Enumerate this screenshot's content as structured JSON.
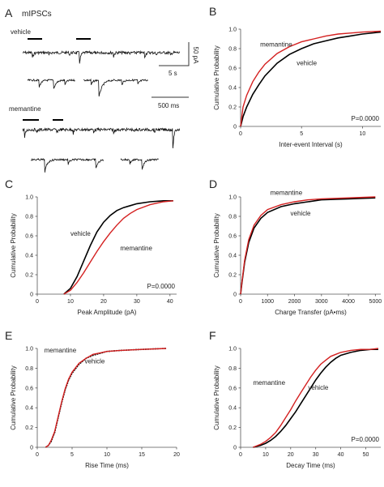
{
  "title": "mIPSCs",
  "colors": {
    "vehicle": "#000000",
    "memantine": "#d42020",
    "axis": "#555555"
  },
  "traces": {
    "vehicle_label": "vehicle",
    "memantine_label": "memantine",
    "scale_amplitude": "50 pA",
    "scale_long": "5 s",
    "scale_short": "500 ms"
  },
  "chart_data": [
    {
      "id": "B",
      "letter": "B",
      "type": "line",
      "xlabel": "Inter-event Interval (s)",
      "ylabel": "Cumulative Probability",
      "xlim": [
        0,
        11.5
      ],
      "ylim": [
        0,
        1.0
      ],
      "xticks": [
        0,
        5,
        10
      ],
      "yticks": [
        0,
        0.2,
        0.4,
        0.6,
        0.8,
        1.0
      ],
      "ytick_labels": [
        "0",
        "0.2",
        "0.4",
        "0.6",
        "0.8",
        "1.0"
      ],
      "pvalue": "P=0.0000",
      "annotations": [
        {
          "text": "memantine",
          "x": 1.6,
          "y": 0.82,
          "series": "memantine"
        },
        {
          "text": "vehicle",
          "x": 4.6,
          "y": 0.63,
          "series": "vehicle"
        }
      ],
      "series": [
        {
          "name": "vehicle",
          "x": [
            0,
            0.2,
            0.5,
            1,
            1.5,
            2,
            3,
            4,
            5,
            6,
            7,
            8,
            9,
            10,
            11.5
          ],
          "y": [
            0.0,
            0.1,
            0.2,
            0.33,
            0.43,
            0.52,
            0.65,
            0.74,
            0.8,
            0.85,
            0.88,
            0.91,
            0.93,
            0.95,
            0.97
          ]
        },
        {
          "name": "memantine",
          "x": [
            0,
            0.2,
            0.5,
            1,
            1.5,
            2,
            3,
            4,
            5,
            6,
            7,
            8,
            9,
            10,
            11.5
          ],
          "y": [
            0.0,
            0.2,
            0.32,
            0.46,
            0.56,
            0.64,
            0.75,
            0.82,
            0.87,
            0.9,
            0.93,
            0.95,
            0.96,
            0.97,
            0.98
          ]
        }
      ]
    },
    {
      "id": "C",
      "letter": "C",
      "type": "line",
      "xlabel": "Peak Amplitude (pA)",
      "ylabel": "Cumulative Probability",
      "xlim": [
        0,
        42
      ],
      "ylim": [
        0,
        1.0
      ],
      "xticks": [
        0,
        10,
        20,
        30,
        40
      ],
      "yticks": [
        0,
        0.2,
        0.4,
        0.6,
        0.8,
        1.0
      ],
      "ytick_labels": [
        "0",
        "0.2",
        "0.4",
        "0.6",
        "0.8",
        "1.0"
      ],
      "pvalue": "P=0.0000",
      "annotations": [
        {
          "text": "vehicle",
          "x": 10,
          "y": 0.6,
          "series": "vehicle"
        },
        {
          "text": "memantine",
          "x": 25,
          "y": 0.45,
          "series": "memantine"
        }
      ],
      "series": [
        {
          "name": "vehicle",
          "x": [
            8,
            10,
            12,
            14,
            16,
            18,
            20,
            22,
            24,
            26,
            28,
            30,
            34,
            38,
            41
          ],
          "y": [
            0.0,
            0.06,
            0.18,
            0.34,
            0.5,
            0.64,
            0.74,
            0.81,
            0.86,
            0.89,
            0.91,
            0.93,
            0.95,
            0.96,
            0.96
          ]
        },
        {
          "name": "memantine",
          "x": [
            8,
            10,
            12,
            14,
            16,
            18,
            20,
            22,
            24,
            26,
            28,
            30,
            34,
            38,
            41
          ],
          "y": [
            0.0,
            0.04,
            0.12,
            0.22,
            0.33,
            0.44,
            0.54,
            0.63,
            0.71,
            0.78,
            0.83,
            0.87,
            0.92,
            0.95,
            0.96
          ]
        }
      ]
    },
    {
      "id": "D",
      "letter": "D",
      "type": "line",
      "xlabel": "Charge Transfer (pA•ms)",
      "ylabel": "Cumulative Probability",
      "xlim": [
        0,
        5200
      ],
      "ylim": [
        0,
        1.0
      ],
      "xticks": [
        0,
        1000,
        2000,
        3000,
        4000,
        5000
      ],
      "yticks": [
        0,
        0.2,
        0.4,
        0.6,
        0.8,
        1.0
      ],
      "ytick_labels": [
        "0",
        "0.2",
        "0.4",
        "0.6",
        "0.8",
        "1.0"
      ],
      "pvalue": "",
      "annotations": [
        {
          "text": "memantine",
          "x": 1100,
          "y": 1.02,
          "series": "memantine"
        },
        {
          "text": "vehicle",
          "x": 1850,
          "y": 0.81,
          "series": "vehicle"
        }
      ],
      "series": [
        {
          "name": "vehicle",
          "x": [
            0,
            50,
            150,
            300,
            500,
            750,
            1000,
            1500,
            2000,
            2500,
            3000,
            4000,
            5000
          ],
          "y": [
            0.0,
            0.12,
            0.33,
            0.53,
            0.68,
            0.78,
            0.84,
            0.9,
            0.93,
            0.95,
            0.97,
            0.98,
            0.99
          ]
        },
        {
          "name": "memantine",
          "x": [
            0,
            50,
            150,
            300,
            500,
            750,
            1000,
            1500,
            2000,
            2500,
            3000,
            4000,
            5000
          ],
          "y": [
            0.0,
            0.13,
            0.35,
            0.56,
            0.71,
            0.81,
            0.87,
            0.92,
            0.95,
            0.97,
            0.98,
            0.99,
            1.0
          ]
        }
      ]
    },
    {
      "id": "E",
      "letter": "E",
      "type": "line",
      "xlabel": "Rise Time (ms)",
      "ylabel": "Cumulative Probability",
      "xlim": [
        0,
        20
      ],
      "ylim": [
        0,
        1.0
      ],
      "xticks": [
        0,
        5,
        10,
        15,
        20
      ],
      "yticks": [
        0,
        0.2,
        0.4,
        0.6,
        0.8,
        1.0
      ],
      "ytick_labels": [
        "0",
        "0.2",
        "0.4",
        "0.6",
        "0.8",
        "1.0"
      ],
      "pvalue": "",
      "annotations": [
        {
          "text": "memantine",
          "x": 1.0,
          "y": 0.96,
          "series": "memantine"
        },
        {
          "text": "vehicle",
          "x": 6.8,
          "y": 0.85,
          "series": "vehicle"
        }
      ],
      "series": [
        {
          "name": "vehicle",
          "x": [
            1.2,
            1.6,
            2,
            2.5,
            3,
            3.5,
            4,
            4.5,
            5,
            6,
            7,
            8,
            10,
            12,
            15,
            18.5
          ],
          "y": [
            0.0,
            0.02,
            0.06,
            0.15,
            0.3,
            0.45,
            0.58,
            0.68,
            0.75,
            0.84,
            0.9,
            0.93,
            0.97,
            0.98,
            0.99,
            1.0
          ]
        },
        {
          "name": "memantine",
          "x": [
            1.2,
            1.6,
            2,
            2.5,
            3,
            3.5,
            4,
            4.5,
            5,
            6,
            7,
            8,
            10,
            12,
            15,
            18.5
          ],
          "y": [
            0.0,
            0.02,
            0.07,
            0.16,
            0.31,
            0.46,
            0.59,
            0.69,
            0.76,
            0.85,
            0.9,
            0.94,
            0.97,
            0.98,
            0.99,
            1.0
          ]
        }
      ]
    },
    {
      "id": "F",
      "letter": "F",
      "type": "line",
      "xlabel": "Decay Time (ms)",
      "ylabel": "Cumulative Probability",
      "xlim": [
        0,
        56
      ],
      "ylim": [
        0,
        1.0
      ],
      "xticks": [
        0,
        10,
        20,
        30,
        40,
        50
      ],
      "yticks": [
        0,
        0.2,
        0.4,
        0.6,
        0.8,
        1.0
      ],
      "ytick_labels": [
        "0",
        "0.2",
        "0.4",
        "0.6",
        "0.8",
        "1.0"
      ],
      "pvalue": "P=0.0000",
      "annotations": [
        {
          "text": "memantine",
          "x": 5,
          "y": 0.63,
          "series": "memantine"
        },
        {
          "text": "vehicle",
          "x": 27,
          "y": 0.58,
          "series": "vehicle"
        }
      ],
      "series": [
        {
          "name": "vehicle",
          "x": [
            5,
            8,
            10,
            12,
            14,
            16,
            18,
            20,
            22,
            24,
            26,
            28,
            30,
            32,
            34,
            36,
            38,
            40,
            44,
            48,
            52,
            55
          ],
          "y": [
            0.0,
            0.02,
            0.04,
            0.07,
            0.11,
            0.16,
            0.22,
            0.29,
            0.36,
            0.44,
            0.52,
            0.6,
            0.68,
            0.75,
            0.81,
            0.86,
            0.9,
            0.93,
            0.96,
            0.98,
            0.99,
            0.99
          ]
        },
        {
          "name": "memantine",
          "x": [
            5,
            8,
            10,
            12,
            14,
            16,
            18,
            20,
            22,
            24,
            26,
            28,
            30,
            32,
            34,
            36,
            38,
            40,
            44,
            48,
            52,
            55
          ],
          "y": [
            0.0,
            0.03,
            0.06,
            0.1,
            0.15,
            0.22,
            0.3,
            0.38,
            0.47,
            0.55,
            0.63,
            0.71,
            0.78,
            0.84,
            0.88,
            0.92,
            0.94,
            0.96,
            0.98,
            0.99,
            0.99,
            1.0
          ]
        }
      ]
    }
  ]
}
